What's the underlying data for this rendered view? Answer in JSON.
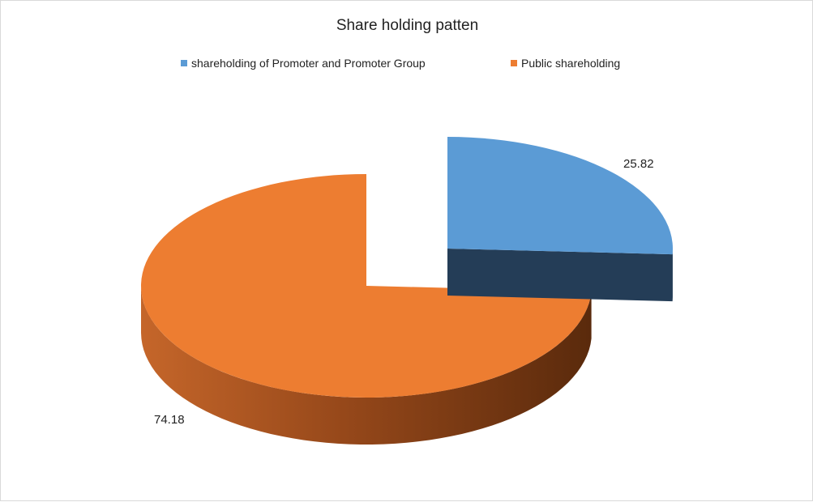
{
  "chart_data": {
    "type": "pie",
    "title": "Share holding patten",
    "legend_position": "top",
    "exploded": true,
    "three_d": true,
    "series": [
      {
        "name": "",
        "categories": [
          "shareholding of Promoter and Promoter Group",
          "Public shareholding"
        ],
        "values": [
          25.82,
          74.18
        ],
        "colors": [
          "#5b9bd5",
          "#ed7d31"
        ]
      }
    ]
  },
  "colors": {
    "promoter_side": "#243d57",
    "public_side": "#6b3310"
  }
}
